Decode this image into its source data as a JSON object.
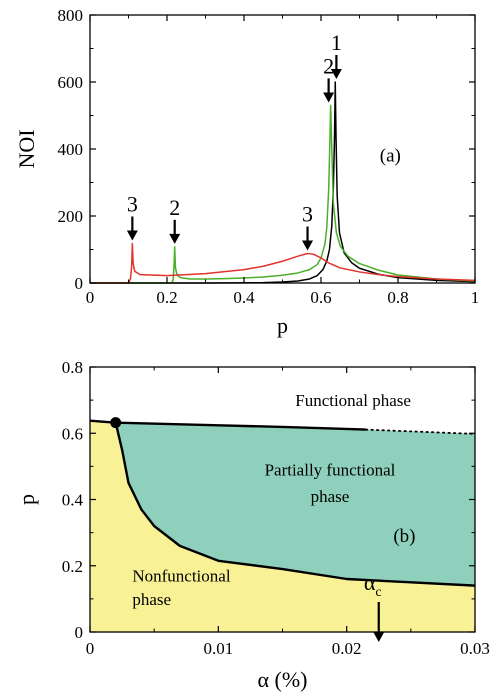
{
  "chart_data": [
    {
      "panel": "a",
      "type": "line",
      "panel_label": "(a)",
      "xlabel": "p",
      "ylabel": "NOI",
      "xlim": [
        0,
        1
      ],
      "ylim": [
        0,
        800
      ],
      "x_ticks": [
        0,
        0.2,
        0.4,
        0.6,
        0.8,
        1
      ],
      "x_tick_labels": [
        "0",
        "0.2",
        "0.4",
        "0.6",
        "0.8",
        "1"
      ],
      "y_ticks": [
        0,
        200,
        400,
        600,
        800
      ],
      "y_tick_labels": [
        "0",
        "200",
        "400",
        "600",
        "800"
      ],
      "grid": false,
      "series": [
        {
          "color": "#000000",
          "points": [
            [
              0.0,
              0
            ],
            [
              0.3,
              0
            ],
            [
              0.45,
              1
            ],
            [
              0.5,
              3
            ],
            [
              0.54,
              6
            ],
            [
              0.57,
              12
            ],
            [
              0.59,
              22
            ],
            [
              0.605,
              40
            ],
            [
              0.615,
              65
            ],
            [
              0.622,
              100
            ],
            [
              0.628,
              170
            ],
            [
              0.632,
              280
            ],
            [
              0.635,
              430
            ],
            [
              0.637,
              600
            ],
            [
              0.639,
              440
            ],
            [
              0.642,
              260
            ],
            [
              0.648,
              150
            ],
            [
              0.66,
              90
            ],
            [
              0.68,
              60
            ],
            [
              0.7,
              44
            ],
            [
              0.75,
              26
            ],
            [
              0.8,
              16
            ],
            [
              0.9,
              8
            ],
            [
              1.0,
              4
            ]
          ]
        },
        {
          "color": "#4caf2a",
          "points": [
            [
              0.0,
              0
            ],
            [
              0.212,
              0
            ],
            [
              0.216,
              10
            ],
            [
              0.218,
              45
            ],
            [
              0.22,
              108
            ],
            [
              0.222,
              45
            ],
            [
              0.226,
              24
            ],
            [
              0.235,
              16
            ],
            [
              0.26,
              12
            ],
            [
              0.3,
              12
            ],
            [
              0.35,
              13
            ],
            [
              0.4,
              15
            ],
            [
              0.45,
              18
            ],
            [
              0.5,
              23
            ],
            [
              0.54,
              30
            ],
            [
              0.57,
              40
            ],
            [
              0.59,
              55
            ],
            [
              0.6,
              75
            ],
            [
              0.61,
              115
            ],
            [
              0.615,
              165
            ],
            [
              0.62,
              280
            ],
            [
              0.623,
              420
            ],
            [
              0.625,
              530
            ],
            [
              0.628,
              400
            ],
            [
              0.632,
              240
            ],
            [
              0.64,
              150
            ],
            [
              0.65,
              110
            ],
            [
              0.67,
              80
            ],
            [
              0.7,
              58
            ],
            [
              0.75,
              38
            ],
            [
              0.8,
              24
            ],
            [
              0.9,
              12
            ],
            [
              1.0,
              6
            ]
          ]
        },
        {
          "color": "#e0342c",
          "points": [
            [
              0.0,
              0
            ],
            [
              0.1,
              0
            ],
            [
              0.105,
              12
            ],
            [
              0.108,
              45
            ],
            [
              0.11,
              118
            ],
            [
              0.112,
              60
            ],
            [
              0.116,
              35
            ],
            [
              0.13,
              25
            ],
            [
              0.2,
              22
            ],
            [
              0.3,
              28
            ],
            [
              0.4,
              40
            ],
            [
              0.45,
              50
            ],
            [
              0.5,
              65
            ],
            [
              0.54,
              80
            ],
            [
              0.565,
              88
            ],
            [
              0.58,
              86
            ],
            [
              0.6,
              75
            ],
            [
              0.62,
              60
            ],
            [
              0.65,
              45
            ],
            [
              0.7,
              33
            ],
            [
              0.75,
              25
            ],
            [
              0.8,
              19
            ],
            [
              0.9,
              12
            ],
            [
              1.0,
              8
            ]
          ]
        }
      ],
      "annotations": [
        {
          "text": "1",
          "x": 0.64,
          "y": 600
        },
        {
          "text": "2",
          "x": 0.625,
          "y": 530
        },
        {
          "text": "3",
          "x": 0.565,
          "y": 88
        },
        {
          "text": "2",
          "x": 0.22,
          "y": 108
        },
        {
          "text": "3",
          "x": 0.11,
          "y": 118
        }
      ]
    },
    {
      "panel": "b",
      "type": "area",
      "panel_label": "(b)",
      "xlabel": "α (%)",
      "ylabel": "p",
      "xlim": [
        0,
        0.03
      ],
      "ylim": [
        0,
        0.8
      ],
      "x_ticks": [
        0,
        0.01,
        0.02,
        0.03
      ],
      "x_tick_labels": [
        "0",
        "0.01",
        "0.02",
        "0.03"
      ],
      "y_ticks": [
        0,
        0.2,
        0.4,
        0.6,
        0.8
      ],
      "y_tick_labels": [
        "0",
        "0.2",
        "0.4",
        "0.6",
        "0.8"
      ],
      "grid": false,
      "regions": [
        {
          "label": "Functional phase",
          "color": "#ffffff"
        },
        {
          "label_lines": [
            "Partially functional",
            "phase"
          ],
          "color": "#8fd0bd"
        },
        {
          "label_lines": [
            "Nonfunctional",
            "phase"
          ],
          "color": "#f9f196"
        }
      ],
      "upper_boundary": [
        [
          0,
          0.638
        ],
        [
          0.002,
          0.632
        ],
        [
          0.01,
          0.624
        ],
        [
          0.015,
          0.619
        ],
        [
          0.0215,
          0.611
        ]
      ],
      "upper_boundary_dotted": [
        [
          0.0215,
          0.611
        ],
        [
          0.03,
          0.598
        ]
      ],
      "lower_boundary": [
        [
          0.002,
          0.632
        ],
        [
          0.0025,
          0.55
        ],
        [
          0.003,
          0.45
        ],
        [
          0.004,
          0.37
        ],
        [
          0.005,
          0.32
        ],
        [
          0.007,
          0.26
        ],
        [
          0.01,
          0.215
        ],
        [
          0.015,
          0.19
        ],
        [
          0.02,
          0.16
        ],
        [
          0.025,
          0.15
        ],
        [
          0.03,
          0.14
        ]
      ],
      "critical_point": [
        0.002,
        0.632
      ],
      "alpha_c_label": "α",
      "alpha_c_subscript": "c",
      "alpha_c": 0.0225
    }
  ]
}
